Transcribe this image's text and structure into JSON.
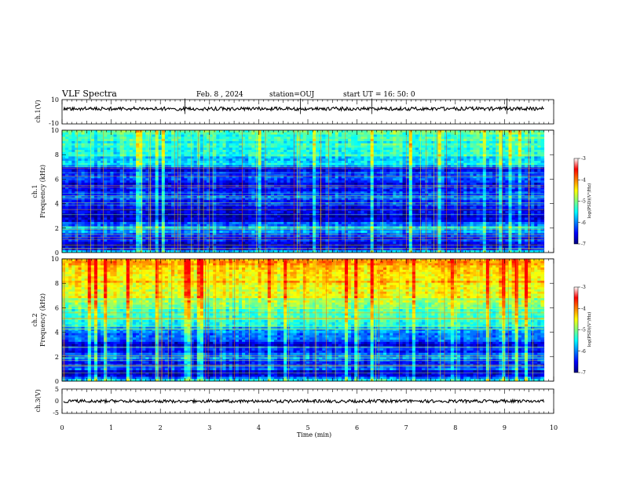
{
  "header": {
    "title": "VLF Spectra",
    "date": "Feb. 8 , 2024",
    "station": "station=OUJ",
    "start_ut": "start UT =  16: 50: 0"
  },
  "chart_data": [
    {
      "type": "line",
      "panel": "ch1-waveform",
      "ylabel": "ch.1(V)",
      "ylim": [
        -10,
        10
      ],
      "yticks": [
        "10",
        "-10"
      ],
      "xlim": [
        0,
        10
      ],
      "baseline_value": 2.5,
      "grid": false
    },
    {
      "type": "heatmap",
      "panel": "ch1-spectrogram",
      "ylabel_lines": [
        "ch.1",
        "Frequency (kHz)"
      ],
      "ylim": [
        0,
        10
      ],
      "yticks": [
        "0",
        "2",
        "4",
        "6",
        "8",
        "10"
      ],
      "xlim": [
        0,
        10
      ],
      "data_end_min": 9.8,
      "colorbar": {
        "label": "log(PSD)(V²/Hz)",
        "range": [
          -7,
          -3
        ],
        "ticks": [
          "-3",
          "-4",
          "-5",
          "-6",
          "-7"
        ],
        "colors": [
          "#00007f",
          "#0000ff",
          "#007fff",
          "#00ffff",
          "#7fff7f",
          "#ffff00",
          "#ff7f00",
          "#ff0000",
          "#ffffff"
        ]
      },
      "band_profile_log_psd": [
        [
          0,
          -5.4
        ],
        [
          0.3,
          -6.4
        ],
        [
          0.6,
          -7.0
        ],
        [
          0.9,
          -6.2
        ],
        [
          1.2,
          -6.6
        ],
        [
          1.6,
          -6.0
        ],
        [
          2.0,
          -5.6
        ],
        [
          2.5,
          -6.4
        ],
        [
          3.0,
          -6.8
        ],
        [
          3.5,
          -6.6
        ],
        [
          4.0,
          -6.3
        ],
        [
          4.5,
          -6.1
        ],
        [
          5.0,
          -6.3
        ],
        [
          5.6,
          -6.4
        ],
        [
          6.2,
          -6.1
        ],
        [
          6.8,
          -6.4
        ],
        [
          7.2,
          -5.6
        ],
        [
          8.0,
          -5.3
        ],
        [
          9.0,
          -5.2
        ],
        [
          10.0,
          -5.1
        ]
      ]
    },
    {
      "type": "heatmap",
      "panel": "ch2-spectrogram",
      "ylabel_lines": [
        "ch.2",
        "Frequency (kHz)"
      ],
      "ylim": [
        0,
        10
      ],
      "yticks": [
        "0",
        "2",
        "4",
        "6",
        "8",
        "10"
      ],
      "xlim": [
        0,
        10
      ],
      "data_end_min": 9.8,
      "colorbar": {
        "label": "log(PSD)(V²/Hz)",
        "range": [
          -7,
          -3
        ],
        "ticks": [
          "-3",
          "-4",
          "-5",
          "-6",
          "-7"
        ],
        "colors": [
          "#00007f",
          "#0000ff",
          "#007fff",
          "#00ffff",
          "#7fff7f",
          "#ffff00",
          "#ff7f00",
          "#ff0000",
          "#ffffff"
        ]
      },
      "band_profile_log_psd": [
        [
          0,
          -5.2
        ],
        [
          0.3,
          -6.2
        ],
        [
          0.7,
          -6.8
        ],
        [
          1.0,
          -6.0
        ],
        [
          1.5,
          -6.3
        ],
        [
          2.0,
          -5.8
        ],
        [
          2.5,
          -6.3
        ],
        [
          3.0,
          -6.6
        ],
        [
          3.5,
          -6.1
        ],
        [
          4.0,
          -5.8
        ],
        [
          4.5,
          -5.5
        ],
        [
          5.0,
          -5.3
        ],
        [
          5.5,
          -5.0
        ],
        [
          6.0,
          -4.8
        ],
        [
          6.5,
          -4.6
        ],
        [
          7.0,
          -4.4
        ],
        [
          7.5,
          -4.2
        ],
        [
          8.0,
          -4.1
        ],
        [
          9.0,
          -4.0
        ],
        [
          10.0,
          -3.9
        ]
      ]
    },
    {
      "type": "line",
      "panel": "ch3-waveform",
      "ylabel": "ch.3(V)",
      "ylim": [
        -5,
        5
      ],
      "yticks": [
        "5",
        "0",
        "-5"
      ],
      "xlim": [
        0,
        10
      ],
      "baseline_value": 0,
      "grid": false
    }
  ],
  "x_axis": {
    "label": "Time (min)",
    "range": [
      0,
      10
    ],
    "ticks": [
      "0",
      "1",
      "2",
      "3",
      "4",
      "5",
      "6",
      "7",
      "8",
      "9",
      "10"
    ]
  }
}
